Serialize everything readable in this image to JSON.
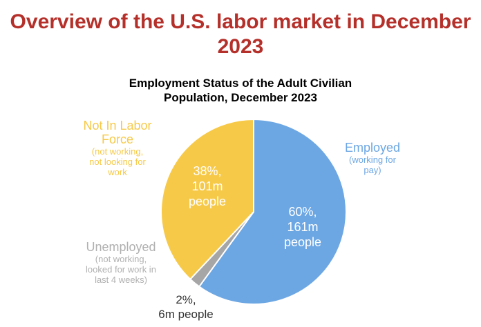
{
  "title_line1": "Overview of the U.S. labor market in December",
  "title_line2": "2023",
  "chart_data": {
    "type": "pie",
    "title_line1": "Employment Status of the Adult Civilian",
    "title_line2": "Population, December 2023",
    "slices": [
      {
        "name": "Employed",
        "description": [
          "(working for",
          "pay)"
        ],
        "percent": 60,
        "value_label": [
          "60%,",
          "161m",
          "people"
        ],
        "color": "#6da7e3",
        "label_color": "#6da7e3"
      },
      {
        "name": "Unemployed",
        "description": [
          "(not working,",
          "looked for work in",
          "last 4 weeks)"
        ],
        "percent": 2,
        "value_label": [
          "2%,",
          "6m people"
        ],
        "color": "#a6a6a6",
        "label_color": "#b0b0b0"
      },
      {
        "name_lines": [
          "Not In Labor",
          "Force"
        ],
        "description": [
          "(not working,",
          "not looking for",
          "work"
        ],
        "percent": 38,
        "value_label": [
          "38%,",
          "101m",
          "people"
        ],
        "color": "#f7c948",
        "label_color": "#f7c948"
      }
    ]
  }
}
